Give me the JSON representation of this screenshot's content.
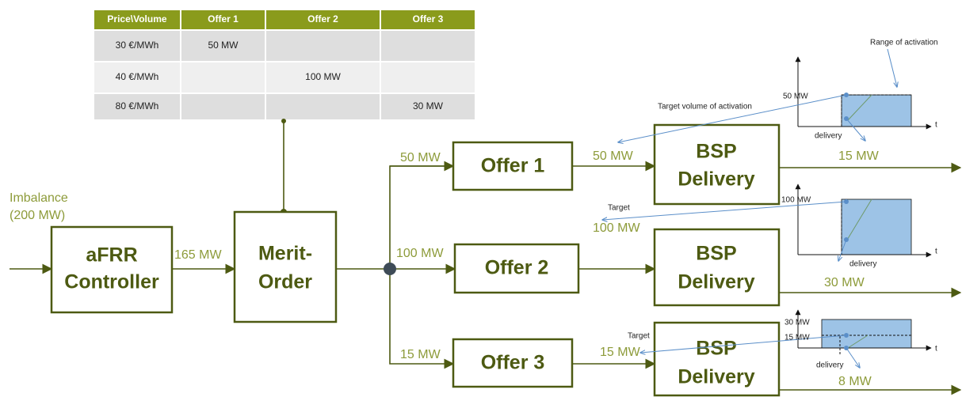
{
  "table": {
    "header": [
      "Price\\Volume",
      "Offer 1",
      "Offer 2",
      "Offer 3"
    ],
    "rows": [
      [
        "30 €/MWh",
        "50 MW",
        null,
        null
      ],
      [
        "40 €/MWh",
        null,
        "100 MW",
        null
      ],
      [
        "80 €/MWh",
        null,
        null,
        "30 MW"
      ]
    ]
  },
  "imbalance": [
    "Imbalance",
    "(200 MW)"
  ],
  "controller": [
    "aFRR",
    "Controller"
  ],
  "controller_output": "165 MW",
  "merit_order": [
    "Merit-",
    "Order"
  ],
  "branch_volumes": [
    "50 MW",
    "100 MW",
    "15 MW"
  ],
  "offers": [
    "Offer 1",
    "Offer 2",
    "Offer 3"
  ],
  "offer_outputs": [
    "50 MW",
    "100 MW",
    "15 MW"
  ],
  "bsp_boxes": [
    [
      "BSP",
      "Delivery"
    ],
    [
      "BSP",
      "Delivery"
    ],
    [
      "BSP",
      "Delivery"
    ]
  ],
  "delivered": [
    "15 MW",
    "30 MW",
    "8 MW"
  ],
  "charts": [
    {
      "levels": [
        "50 MW"
      ],
      "axis": "t",
      "delivery": "delivery",
      "target": "Target volume of activation",
      "range": "Range of activation"
    },
    {
      "levels": [
        "100 MW"
      ],
      "axis": "t",
      "delivery": "delivery",
      "target": "Target"
    },
    {
      "levels": [
        "30 MW",
        "15 MW"
      ],
      "axis": "t",
      "delivery": "delivery",
      "target": "Target"
    }
  ]
}
